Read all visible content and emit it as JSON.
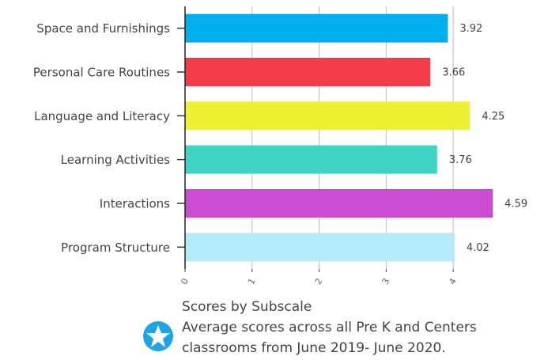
{
  "chart_data": {
    "type": "bar",
    "orientation": "horizontal",
    "title": "Scores by Subscale",
    "subtitle": "Average scores across all Pre K and Centers classrooms from June 2019- June 2020.",
    "categories": [
      "Space and Furnishings",
      "Personal Care Routines",
      "Language and Literacy",
      "Learning Activities",
      "Interactions",
      "Program Structure"
    ],
    "values": [
      3.92,
      3.66,
      4.25,
      3.76,
      4.59,
      4.02
    ],
    "colors": [
      "#00adef",
      "#f23c4a",
      "#eef032",
      "#3ed3c3",
      "#cc4bd3",
      "#b3eafc"
    ],
    "xlim": [
      0,
      4.6
    ],
    "xticks": [
      0,
      1,
      2,
      3,
      4
    ],
    "grid": true
  }
}
